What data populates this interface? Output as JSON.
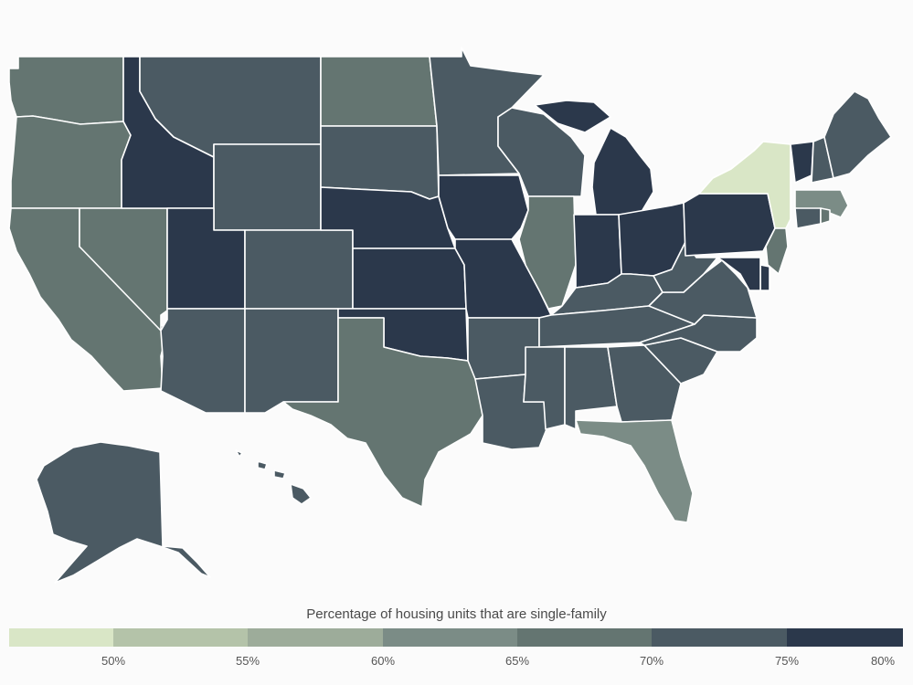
{
  "legend": {
    "title": "Percentage of housing units that are single-family",
    "ticks": [
      "50%",
      "55%",
      "60%",
      "65%",
      "70%",
      "75%",
      "80%"
    ],
    "bins": [
      {
        "range": "below 50%",
        "color": "#d9e6c6"
      },
      {
        "range": "50%–55%",
        "color": "#b4c3a9"
      },
      {
        "range": "55%–60%",
        "color": "#9dac9a"
      },
      {
        "range": "60%–65%",
        "color": "#7b8c86"
      },
      {
        "range": "65%–70%",
        "color": "#647571"
      },
      {
        "range": "70%–75%",
        "color": "#4b5a63"
      },
      {
        "range": "75%–80%",
        "color": "#2b384b"
      }
    ]
  },
  "states": {
    "WA": "#647571",
    "OR": "#647571",
    "CA": "#647571",
    "NV": "#647571",
    "ID": "#2b384b",
    "MT": "#4b5a63",
    "WY": "#4b5a63",
    "UT": "#2b384b",
    "AZ": "#4b5a63",
    "CO": "#4b5a63",
    "NM": "#4b5a63",
    "ND": "#647571",
    "SD": "#4b5a63",
    "NE": "#2b384b",
    "KS": "#2b384b",
    "OK": "#2b384b",
    "TX": "#647571",
    "MN": "#4b5a63",
    "IA": "#2b384b",
    "MO": "#2b384b",
    "AR": "#4b5a63",
    "LA": "#4b5a63",
    "WI": "#4b5a63",
    "IL": "#647571",
    "MI": "#2b384b",
    "IN": "#2b384b",
    "OH": "#2b384b",
    "KY": "#4b5a63",
    "TN": "#4b5a63",
    "MS": "#4b5a63",
    "AL": "#4b5a63",
    "GA": "#4b5a63",
    "FL": "#7b8c86",
    "SC": "#4b5a63",
    "NC": "#4b5a63",
    "VA": "#4b5a63",
    "WV": "#4b5a63",
    "PA": "#2b384b",
    "NY": "#d9e6c6",
    "VT": "#2b384b",
    "NH": "#4b5a63",
    "ME": "#4b5a63",
    "MA": "#7b8c86",
    "CT": "#4b5a63",
    "RI": "#647571",
    "NJ": "#647571",
    "DE": "#2b384b",
    "MD": "#2b384b",
    "AK": "#4b5a63",
    "HI": "#4b5a63"
  }
}
